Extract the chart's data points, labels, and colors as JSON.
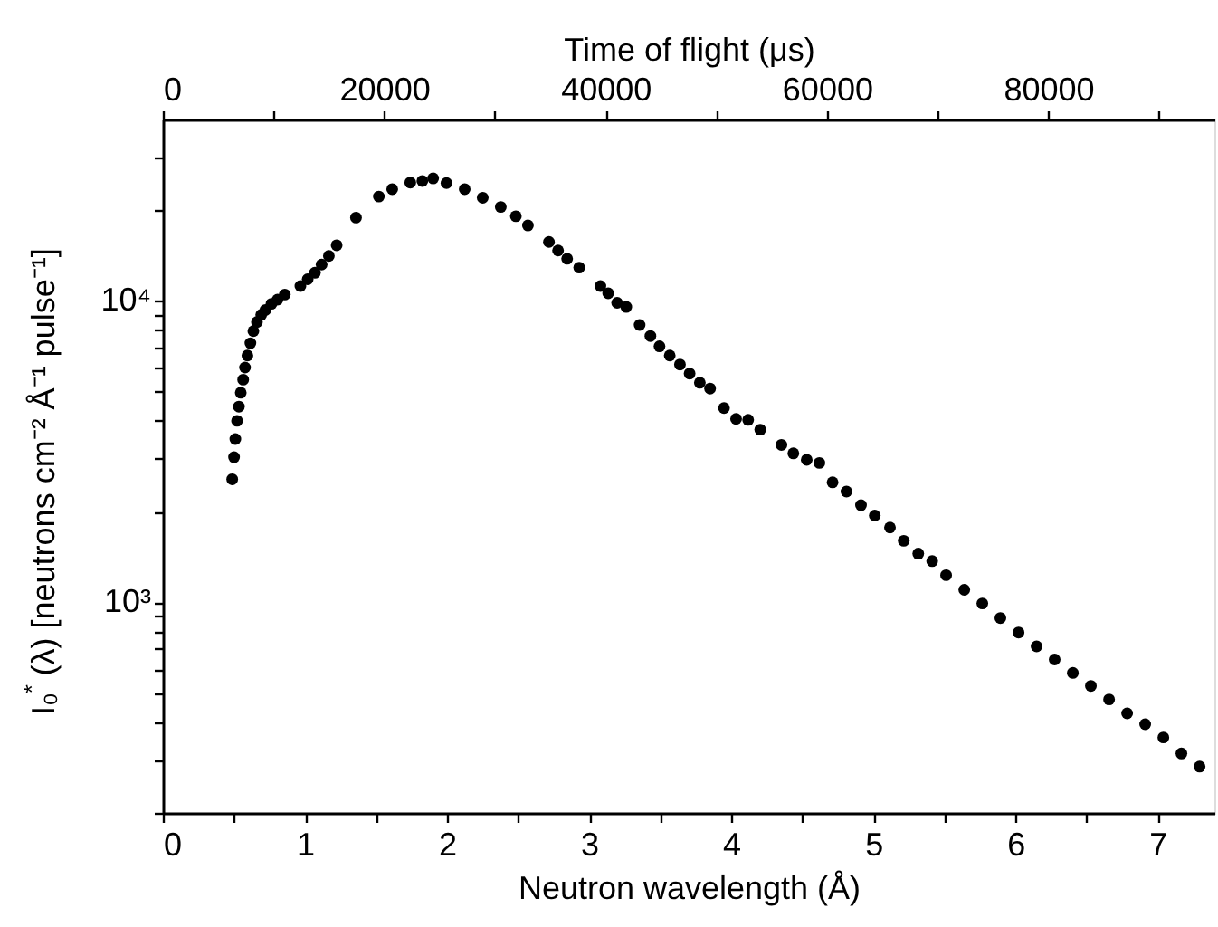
{
  "chart_data": {
    "type": "scatter",
    "xlabel": "Neutron wavelength (Å)",
    "x2label": "Time of flight (μs)",
    "ylabel": "I₀$^{*}$ (λ) [neutrons cm⁻² Å⁻¹ pulse⁻¹]",
    "log": "y",
    "grid": false,
    "marker": "circle",
    "xlim": [
      0,
      7.4
    ],
    "xticks": [
      0,
      {
        "value": 0.5,
        "label": null
      },
      1,
      {
        "value": 1.5,
        "label": null
      },
      2,
      {
        "value": 2.5,
        "label": null
      },
      3,
      {
        "value": 3.5,
        "label": null
      },
      4,
      {
        "value": 4.5,
        "label": null
      },
      5,
      {
        "value": 5.5,
        "label": null
      },
      6,
      {
        "value": 6.5,
        "label": null
      },
      7
    ],
    "x2lim": [
      0,
      95000
    ],
    "x2ticks": [
      0,
      {
        "value": 10000,
        "label": null
      },
      20000,
      {
        "value": 30000,
        "label": null
      },
      40000,
      {
        "value": 50000,
        "label": null
      },
      60000,
      {
        "value": 70000,
        "label": null
      },
      80000,
      {
        "value": 90000,
        "label": null
      }
    ],
    "ylim": [
      200,
      40000
    ],
    "yticks": [
      {
        "value": 200,
        "label": null
      },
      {
        "value": 300,
        "label": null
      },
      {
        "value": 400,
        "label": null
      },
      {
        "value": 500,
        "label": null
      },
      {
        "value": 600,
        "label": null
      },
      {
        "value": 700,
        "label": null
      },
      {
        "value": 800,
        "label": null
      },
      {
        "value": 900,
        "label": null
      },
      {
        "value": 1000,
        "label": "10³"
      },
      {
        "value": 2000,
        "label": null
      },
      {
        "value": 3000,
        "label": null
      },
      {
        "value": 4000,
        "label": null
      },
      {
        "value": 5000,
        "label": null
      },
      {
        "value": 6000,
        "label": null
      },
      {
        "value": 7000,
        "label": null
      },
      {
        "value": 8000,
        "label": null
      },
      {
        "value": 9000,
        "label": null
      },
      {
        "value": 10000,
        "label": "10⁴"
      },
      {
        "value": 20000,
        "label": null
      },
      {
        "value": 30000,
        "label": null
      }
    ],
    "series": [
      {
        "color": "#000000",
        "x": [
          0.488,
          0.501,
          0.51,
          0.522,
          0.535,
          0.548,
          0.565,
          0.578,
          0.595,
          0.616,
          0.637,
          0.662,
          0.692,
          0.722,
          0.764,
          0.807,
          0.858,
          0.968,
          1.019,
          1.07,
          1.117,
          1.168,
          1.223,
          1.359,
          1.52,
          1.614,
          1.741,
          1.826,
          1.902,
          1.996,
          2.124,
          2.251,
          2.378,
          2.484,
          2.569,
          2.717,
          2.781,
          2.845,
          2.93,
          3.079,
          3.134,
          3.197,
          3.261,
          3.355,
          3.431,
          3.495,
          3.567,
          3.639,
          3.707,
          3.779,
          3.851,
          3.949,
          4.034,
          4.119,
          4.204,
          4.353,
          4.437,
          4.531,
          4.62,
          4.713,
          4.811,
          4.913,
          5.01,
          5.117,
          5.214,
          5.316,
          5.414,
          5.512,
          5.64,
          5.767,
          5.894,
          6.022,
          6.149,
          6.276,
          6.404,
          6.531,
          6.659,
          6.786,
          6.913,
          7.041,
          7.168,
          7.296
        ],
        "values": [
          2560,
          3030,
          3480,
          4000,
          4460,
          4960,
          5480,
          6010,
          6590,
          7240,
          7940,
          8510,
          8990,
          9330,
          9780,
          10100,
          10500,
          11200,
          11800,
          12400,
          13200,
          14100,
          15300,
          18900,
          22200,
          23500,
          24700,
          25000,
          25500,
          24600,
          23500,
          22000,
          20500,
          19100,
          17800,
          15700,
          14700,
          13800,
          12900,
          11200,
          10600,
          9860,
          9550,
          8320,
          7650,
          7070,
          6590,
          6150,
          5740,
          5350,
          5120,
          4410,
          4060,
          4030,
          3740,
          3330,
          3120,
          2970,
          2900,
          2500,
          2330,
          2100,
          1940,
          1770,
          1600,
          1450,
          1370,
          1230,
          1100,
          991,
          887,
          794,
          714,
          646,
          583,
          528,
          476,
          428,
          394,
          356,
          315,
          285
        ]
      }
    ]
  }
}
